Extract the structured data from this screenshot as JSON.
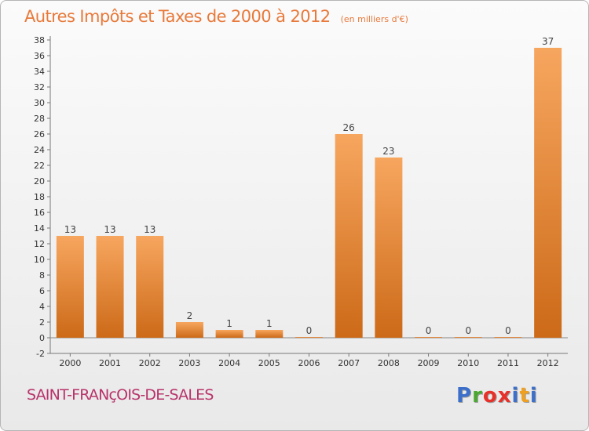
{
  "header": {
    "title": "Autres Impôts et Taxes de 2000 à 2012",
    "subtitle": "(en milliers d'€)"
  },
  "commune": "SAINT-FRANçOIS-DE-SALES",
  "logo": {
    "text": "Proxiti",
    "letters": [
      "P",
      "r",
      "o",
      "x",
      "i",
      "t",
      "i"
    ],
    "colors": [
      "#3c6fc9",
      "#4aa832",
      "#e8302a",
      "#e8302a",
      "#3c6fc9",
      "#f0a020",
      "#3c6fc9"
    ]
  },
  "colors": {
    "bar_top": "#f7a65f",
    "bar_bottom": "#cc6a18",
    "title": "#e8793a",
    "commune": "#b8336a"
  },
  "chart_data": {
    "type": "bar",
    "categories": [
      "2000",
      "2001",
      "2002",
      "2003",
      "2004",
      "2005",
      "2006",
      "2007",
      "2008",
      "2009",
      "2010",
      "2011",
      "2012"
    ],
    "values": [
      13,
      13,
      13,
      2,
      1,
      1,
      0,
      26,
      23,
      0,
      0,
      0,
      37
    ],
    "value_labels": [
      "13",
      "13",
      "13",
      "2",
      "1",
      "1",
      "0",
      "26",
      "23",
      "0",
      "0",
      "0",
      "37"
    ],
    "title": "Autres Impôts et Taxes de 2000 à 2012",
    "ylim": [
      -2,
      38
    ],
    "yticks": [
      "-2",
      "0",
      "2",
      "4",
      "6",
      "8",
      "10",
      "12",
      "14",
      "16",
      "18",
      "20",
      "22",
      "24",
      "26",
      "28",
      "30",
      "32",
      "34",
      "36",
      "38"
    ],
    "grid": false,
    "legend": "none"
  }
}
